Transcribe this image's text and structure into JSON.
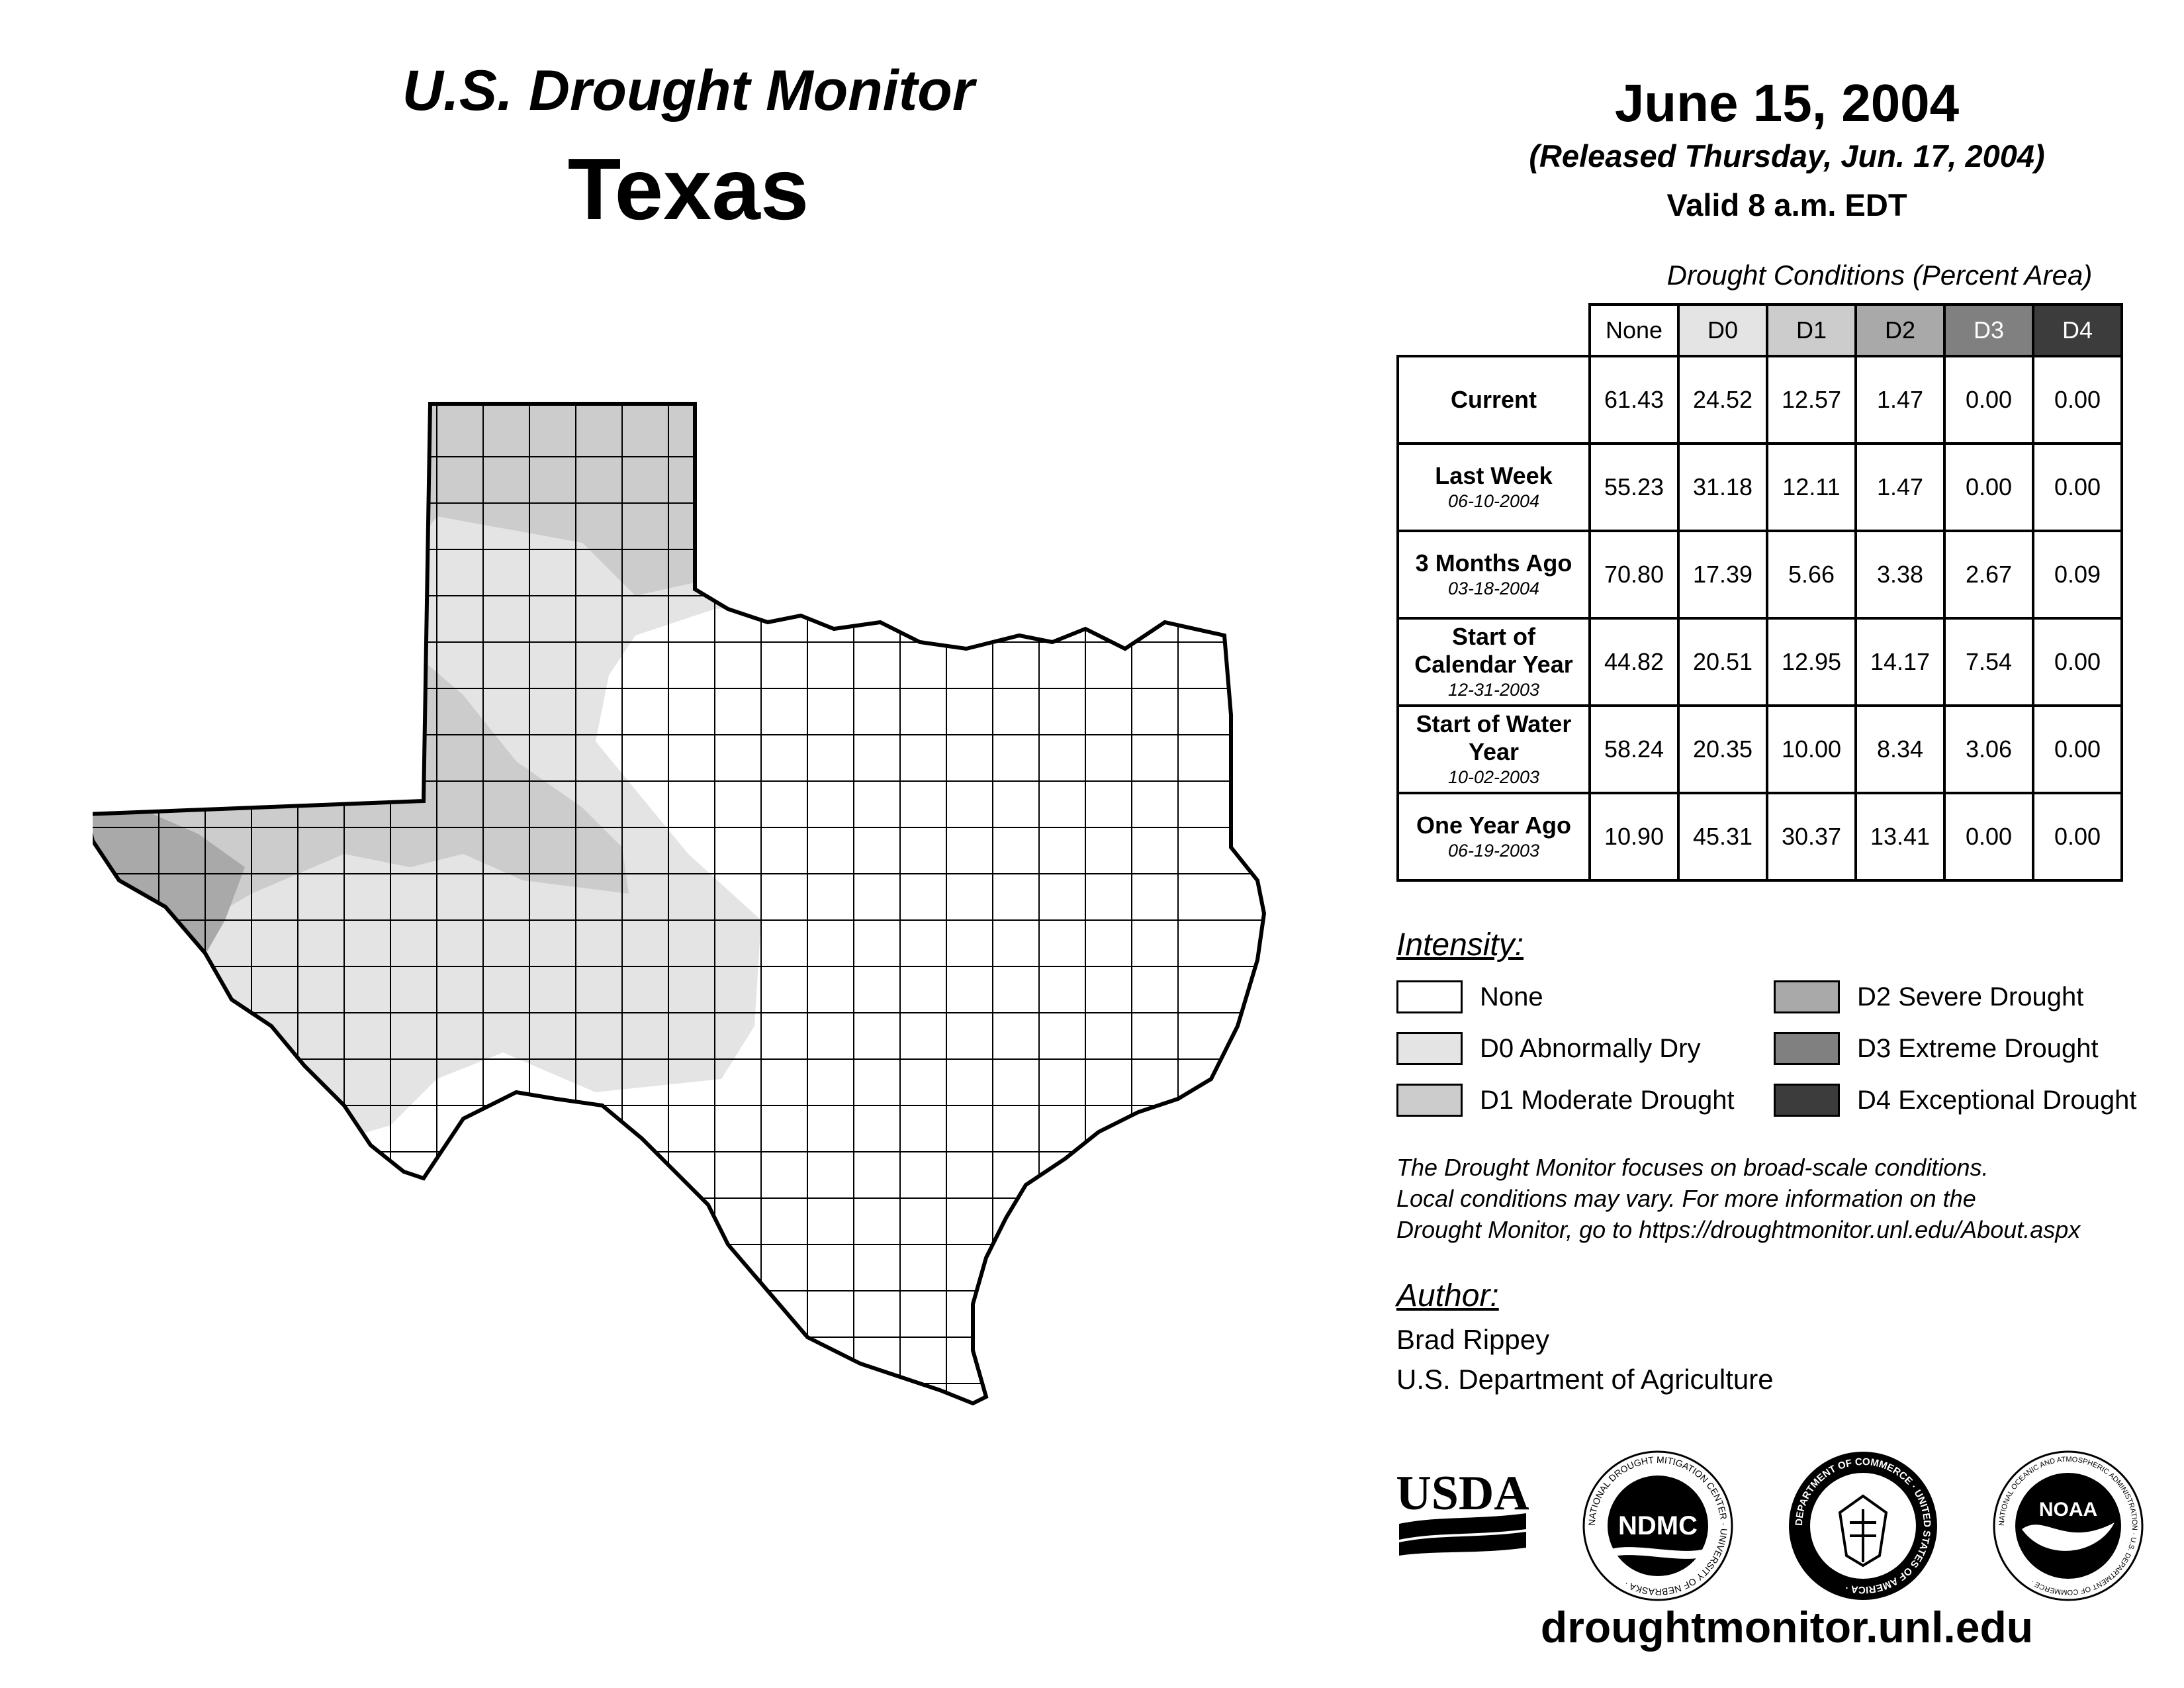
{
  "header": {
    "title": "U.S. Drought Monitor",
    "state": "Texas",
    "date": "June 15, 2004",
    "released": "(Released Thursday, Jun. 17, 2004)",
    "valid": "Valid 8 a.m. EDT"
  },
  "conditions": {
    "caption": "Drought Conditions (Percent Area)",
    "columns": [
      "None",
      "D0",
      "D1",
      "D2",
      "D3",
      "D4"
    ],
    "rows": [
      {
        "label": "Current",
        "sublabel": "",
        "values": [
          "61.43",
          "24.52",
          "12.57",
          "1.47",
          "0.00",
          "0.00"
        ]
      },
      {
        "label": "Last Week",
        "sublabel": "06-10-2004",
        "values": [
          "55.23",
          "31.18",
          "12.11",
          "1.47",
          "0.00",
          "0.00"
        ]
      },
      {
        "label": "3 Months Ago",
        "sublabel": "03-18-2004",
        "values": [
          "70.80",
          "17.39",
          "5.66",
          "3.38",
          "2.67",
          "0.09"
        ]
      },
      {
        "label": "Start of Calendar Year",
        "sublabel": "12-31-2003",
        "values": [
          "44.82",
          "20.51",
          "12.95",
          "14.17",
          "7.54",
          "0.00"
        ]
      },
      {
        "label": "Start of Water Year",
        "sublabel": "10-02-2003",
        "values": [
          "58.24",
          "20.35",
          "10.00",
          "8.34",
          "3.06",
          "0.00"
        ]
      },
      {
        "label": "One Year Ago",
        "sublabel": "06-19-2003",
        "values": [
          "10.90",
          "45.31",
          "30.37",
          "13.41",
          "0.00",
          "0.00"
        ]
      }
    ]
  },
  "legend": {
    "title": "Intensity:",
    "items": [
      {
        "label": "None",
        "color": "#ffffff"
      },
      {
        "label": "D0 Abnormally Dry",
        "color": "#e4e4e4"
      },
      {
        "label": "D1 Moderate Drought",
        "color": "#cccccc"
      },
      {
        "label": "D2 Severe Drought",
        "color": "#a9a9a9"
      },
      {
        "label": "D3 Extreme Drought",
        "color": "#808080"
      },
      {
        "label": "D4 Exceptional Drought",
        "color": "#3c3c3c"
      }
    ]
  },
  "note": {
    "line1": "The Drought Monitor focuses on broad-scale conditions.",
    "line2": "Local conditions may vary. For more information on the",
    "line3": "Drought Monitor, go to https://droughtmonitor.unl.edu/About.aspx"
  },
  "author": {
    "title": "Author:",
    "name": "Brad Rippey",
    "org": "U.S. Department of Agriculture"
  },
  "logos": {
    "usda": "USDA",
    "ndmc": "NDMC",
    "ndmc_ring": "NATIONAL DROUGHT MITIGATION CENTER · UNIVERSITY OF NEBRASKA ·",
    "commerce_ring": "DEPARTMENT OF COMMERCE · UNITED STATES OF AMERICA ·",
    "noaa": "NOAA",
    "noaa_ring": "NATIONAL OCEANIC AND ATMOSPHERIC ADMINISTRATION · U.S. DEPARTMENT OF COMMERCE ·"
  },
  "website": "droughtmonitor.unl.edu"
}
